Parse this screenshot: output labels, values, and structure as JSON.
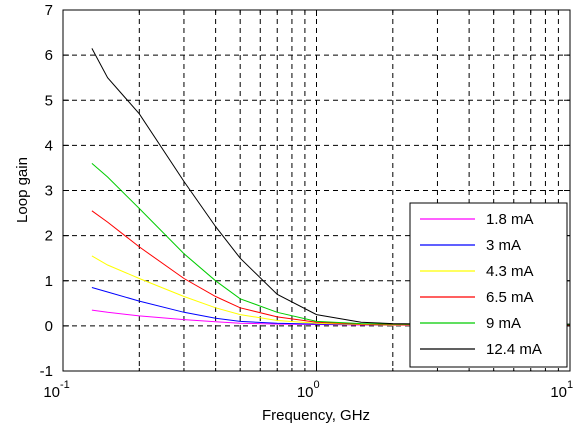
{
  "chart_data": {
    "type": "line",
    "title": "",
    "xlabel": "Frequency, GHz",
    "ylabel": "Loop gain",
    "xscale": "log",
    "xlim": [
      0.1,
      10
    ],
    "ylim": [
      -1,
      7
    ],
    "yticks": [
      "-1",
      "0",
      "1",
      "2",
      "3",
      "4",
      "5",
      "6",
      "7"
    ],
    "xtick_major": [
      {
        "base": "10",
        "exp": "-1",
        "value": 0.1
      },
      {
        "base": "10",
        "exp": "0",
        "value": 1
      },
      {
        "base": "10",
        "exp": "1",
        "value": 10
      }
    ],
    "grid": true,
    "grid_style": "dashed",
    "legend_position": "lower-right",
    "series": [
      {
        "name": "1.8 mA",
        "color": "#ff00ff",
        "x": [
          0.13,
          0.15,
          0.2,
          0.3,
          0.4,
          0.5,
          0.7,
          1,
          1.5,
          2,
          3,
          5,
          7,
          10
        ],
        "y": [
          0.35,
          0.3,
          0.22,
          0.14,
          0.09,
          0.06,
          0.04,
          0.03,
          0.02,
          0.01,
          0.01,
          0.01,
          0.01,
          0.01
        ]
      },
      {
        "name": "3 mA",
        "color": "#0000ff",
        "x": [
          0.13,
          0.15,
          0.2,
          0.3,
          0.4,
          0.5,
          0.7,
          1,
          1.5,
          2,
          3,
          5,
          7,
          10
        ],
        "y": [
          0.85,
          0.75,
          0.55,
          0.3,
          0.17,
          0.1,
          0.06,
          0.04,
          0.03,
          0.02,
          0.02,
          0.01,
          0.01,
          0.01
        ]
      },
      {
        "name": "4.3 mA",
        "color": "#ffff00",
        "x": [
          0.13,
          0.15,
          0.2,
          0.3,
          0.4,
          0.5,
          0.7,
          1,
          1.5,
          2,
          3,
          5,
          7,
          10
        ],
        "y": [
          1.55,
          1.35,
          1.05,
          0.65,
          0.4,
          0.25,
          0.12,
          0.06,
          0.03,
          0.02,
          0.02,
          0.02,
          0.02,
          0.02
        ]
      },
      {
        "name": "6.5 mA",
        "color": "#ff0000",
        "x": [
          0.13,
          0.15,
          0.2,
          0.3,
          0.4,
          0.5,
          0.7,
          1,
          1.5,
          2,
          3,
          5,
          7,
          10
        ],
        "y": [
          2.55,
          2.3,
          1.75,
          1.05,
          0.65,
          0.4,
          0.2,
          0.08,
          0.04,
          0.03,
          0.02,
          0.02,
          0.02,
          0.02
        ]
      },
      {
        "name": "9 mA",
        "color": "#00cc00",
        "x": [
          0.13,
          0.15,
          0.2,
          0.3,
          0.4,
          0.5,
          0.7,
          1,
          1.5,
          2,
          3,
          5,
          7,
          10
        ],
        "y": [
          3.6,
          3.3,
          2.6,
          1.6,
          1.0,
          0.6,
          0.3,
          0.1,
          0.05,
          0.04,
          0.03,
          0.03,
          0.03,
          0.03
        ]
      },
      {
        "name": "12.4 mA",
        "color": "#000000",
        "x": [
          0.13,
          0.15,
          0.2,
          0.3,
          0.4,
          0.5,
          0.7,
          1,
          1.5,
          2,
          3,
          5,
          7,
          10
        ],
        "y": [
          6.15,
          5.5,
          4.7,
          3.2,
          2.2,
          1.5,
          0.7,
          0.25,
          0.08,
          0.05,
          0.04,
          0.04,
          0.04,
          0.04
        ]
      }
    ]
  }
}
